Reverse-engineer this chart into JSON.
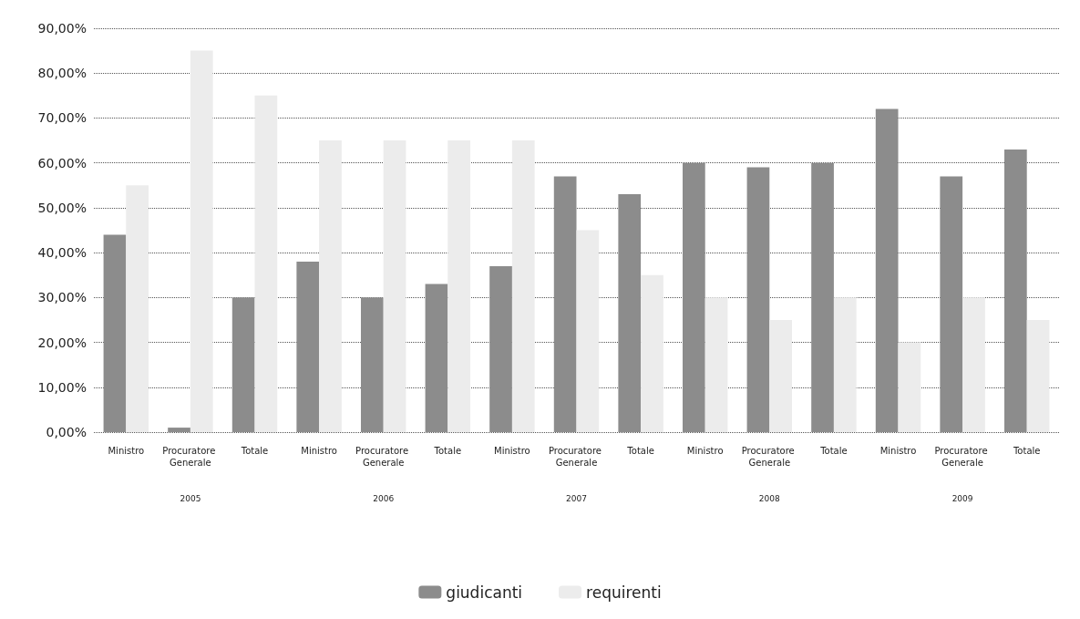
{
  "chart_data": {
    "type": "bar",
    "categories": [
      "Ministro",
      "Procuratore Generale",
      "Totale",
      "Ministro",
      "Procuratore Generale",
      "Totale",
      "Ministro",
      "Procuratore Generale",
      "Totale",
      "Ministro",
      "Procuratore Generale",
      "Totale",
      "Ministro",
      "Procuratore Generale",
      "Totale"
    ],
    "series": [
      {
        "name": "giudicanti",
        "color": "#8c8c8c",
        "values": [
          44,
          1,
          30,
          38,
          30,
          33,
          37,
          57,
          53,
          60,
          59,
          60,
          72,
          57,
          63
        ]
      },
      {
        "name": "requirenti",
        "color": "#ececec",
        "values": [
          55,
          85,
          75,
          65,
          65,
          65,
          65,
          45,
          35,
          30,
          25,
          30,
          20,
          30,
          25
        ]
      }
    ],
    "annotations": [
      "2005",
      "2006",
      "2007",
      "2008",
      "2009"
    ],
    "ylim": [
      0,
      90
    ],
    "yticks": [
      {
        "value": 0,
        "label": "0,00%"
      },
      {
        "value": 10,
        "label": "10,00%"
      },
      {
        "value": 20,
        "label": "20,00%"
      },
      {
        "value": 30,
        "label": "30,00%"
      },
      {
        "value": 40,
        "label": "40,00%"
      },
      {
        "value": 50,
        "label": "50,00%"
      },
      {
        "value": 60,
        "label": "60,00%"
      },
      {
        "value": 70,
        "label": "70,00%"
      },
      {
        "value": 80,
        "label": "80,00%"
      },
      {
        "value": 90,
        "label": "90,00%"
      }
    ],
    "grid": "y",
    "legend": "bottom"
  }
}
